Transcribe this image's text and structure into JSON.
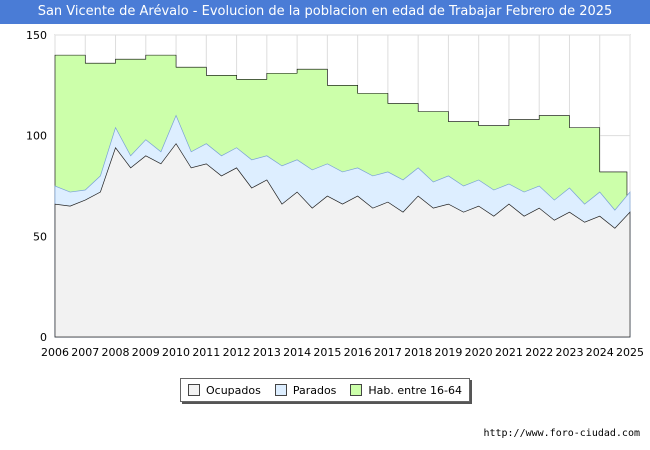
{
  "chart_data": {
    "type": "area",
    "title": "San Vicente de Arévalo - Evolucion de la poblacion en edad de Trabajar Febrero de 2025",
    "xlabel": "",
    "ylabel": "",
    "ylim": [
      0,
      150
    ],
    "yticks": [
      0,
      50,
      100,
      150
    ],
    "xticks": [
      "2006",
      "2007",
      "2008",
      "2009",
      "2010",
      "2011",
      "2012",
      "2013",
      "2014",
      "2015",
      "2016",
      "2017",
      "2018",
      "2019",
      "2020",
      "2021",
      "2022",
      "2023",
      "2024",
      "2025"
    ],
    "grid": true,
    "legend_position": "bottom",
    "series": [
      {
        "name": "Hab. entre 16-64",
        "color": "#ccffaa",
        "step": true,
        "x": [
          2006,
          2007,
          2008,
          2009,
          2010,
          2011,
          2012,
          2013,
          2014,
          2015,
          2016,
          2017,
          2018,
          2019,
          2020,
          2021,
          2022,
          2023,
          2024
        ],
        "values": [
          140,
          136,
          138,
          140,
          134,
          130,
          128,
          131,
          133,
          125,
          121,
          116,
          112,
          107,
          105,
          108,
          110,
          104,
          82
        ]
      },
      {
        "name": "Parados",
        "color": "#ddeeff",
        "x": [
          2006.0,
          2006.5,
          2007.0,
          2007.5,
          2008.0,
          2008.5,
          2009.0,
          2009.5,
          2010.0,
          2010.5,
          2011.0,
          2011.5,
          2012.0,
          2012.5,
          2013.0,
          2013.5,
          2014.0,
          2014.5,
          2015.0,
          2015.5,
          2016.0,
          2016.5,
          2017.0,
          2017.5,
          2018.0,
          2018.5,
          2019.0,
          2019.5,
          2020.0,
          2020.5,
          2021.0,
          2021.5,
          2022.0,
          2022.5,
          2023.0,
          2023.5,
          2024.0,
          2024.5,
          2025.0
        ],
        "values": [
          75,
          72,
          73,
          80,
          104,
          90,
          98,
          92,
          110,
          92,
          96,
          90,
          94,
          88,
          90,
          85,
          88,
          83,
          86,
          82,
          84,
          80,
          82,
          78,
          84,
          77,
          80,
          75,
          78,
          73,
          76,
          72,
          75,
          68,
          74,
          66,
          72,
          63,
          72
        ]
      },
      {
        "name": "Ocupados",
        "color": "#f2f2f2",
        "x": [
          2006.0,
          2006.5,
          2007.0,
          2007.5,
          2008.0,
          2008.5,
          2009.0,
          2009.5,
          2010.0,
          2010.5,
          2011.0,
          2011.5,
          2012.0,
          2012.5,
          2013.0,
          2013.5,
          2014.0,
          2014.5,
          2015.0,
          2015.5,
          2016.0,
          2016.5,
          2017.0,
          2017.5,
          2018.0,
          2018.5,
          2019.0,
          2019.5,
          2020.0,
          2020.5,
          2021.0,
          2021.5,
          2022.0,
          2022.5,
          2023.0,
          2023.5,
          2024.0,
          2024.5,
          2025.0
        ],
        "values": [
          66,
          65,
          68,
          72,
          94,
          84,
          90,
          86,
          96,
          84,
          86,
          80,
          84,
          74,
          78,
          66,
          72,
          64,
          70,
          66,
          70,
          64,
          67,
          62,
          70,
          64,
          66,
          62,
          65,
          60,
          66,
          60,
          64,
          58,
          62,
          57,
          60,
          54,
          62
        ]
      }
    ]
  },
  "legend": {
    "ocupados": "Ocupados",
    "parados": "Parados",
    "hab": "Hab. entre 16-64",
    "ocupados_color": "#f2f2f2",
    "parados_color": "#ddeeff",
    "hab_color": "#ccffaa"
  },
  "watermark": "FORO-CIUDAD.COM",
  "source": "http://www.foro-ciudad.com"
}
